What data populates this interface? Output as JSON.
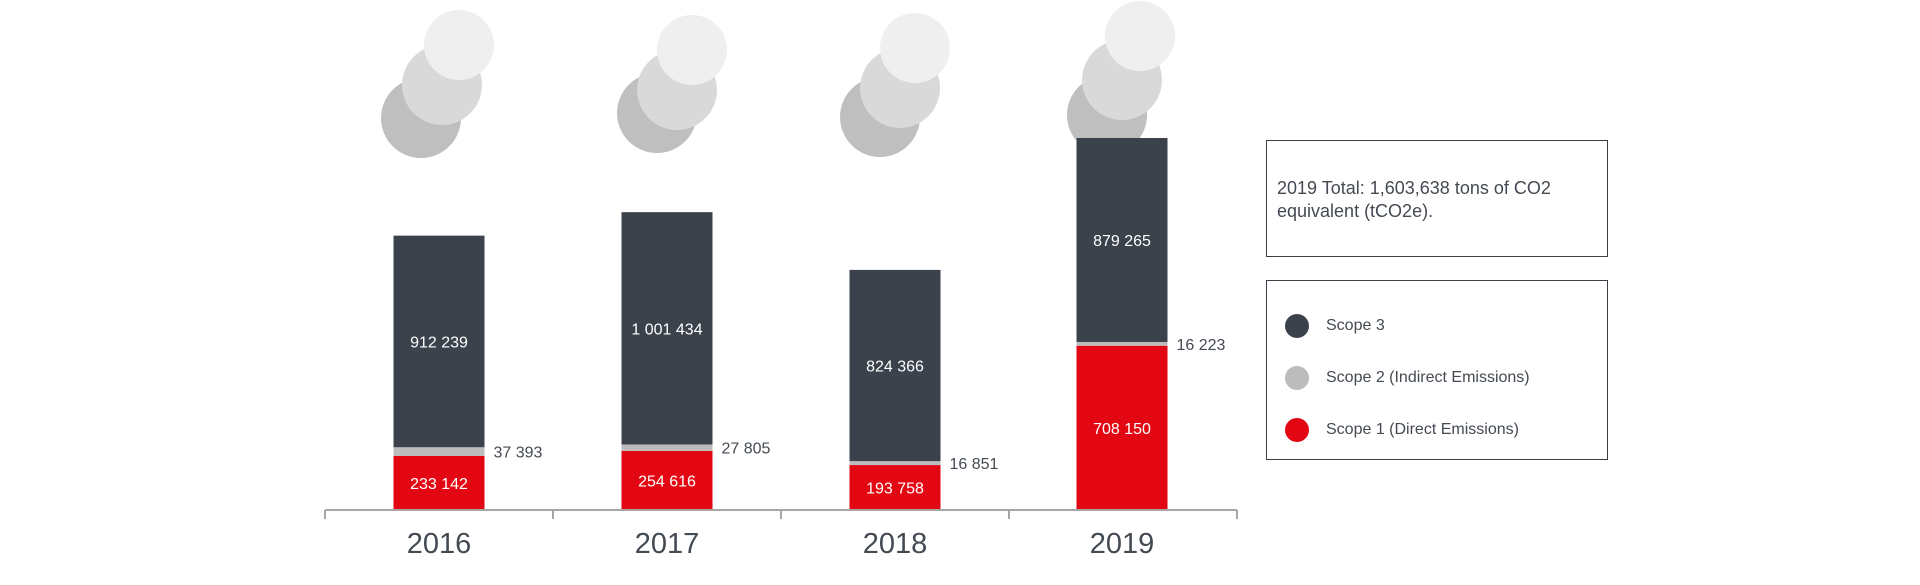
{
  "chart_data": {
    "type": "bar",
    "stacked": true,
    "categories": [
      "2016",
      "2017",
      "2018",
      "2019"
    ],
    "series": [
      {
        "name": "Scope 1 (Direct Emissions)",
        "color": "#e30613",
        "values": [
          233142,
          254616,
          193758,
          708150
        ],
        "labels": [
          "233 142",
          "254 616",
          "193 758",
          "708 150"
        ]
      },
      {
        "name": "Scope 2 (Indirect Emissions)",
        "color": "#bcbcbc",
        "values": [
          37393,
          27805,
          16851,
          16223
        ],
        "labels": [
          "37 393",
          "27 805",
          "16 851",
          "16 223"
        ]
      },
      {
        "name": "Scope 3",
        "color": "#3b424c",
        "values": [
          912239,
          1001434,
          824366,
          879265
        ],
        "labels": [
          "912 239",
          "1 001 434",
          "824 366",
          "879 265"
        ]
      }
    ],
    "legend_position": "right",
    "grid": false,
    "decoration": "smoke-clouds-above-bars"
  },
  "info_box": {
    "text": "2019 Total: 1,603,638 tons of CO2 equivalent (tCO2e)."
  },
  "legend": {
    "items": [
      {
        "label": "Scope 3",
        "color": "#3b424c"
      },
      {
        "label": "Scope 2 (Indirect Emissions)",
        "color": "#bcbcbc"
      },
      {
        "label": "Scope 1 (Direct Emissions)",
        "color": "#e30613"
      }
    ]
  }
}
